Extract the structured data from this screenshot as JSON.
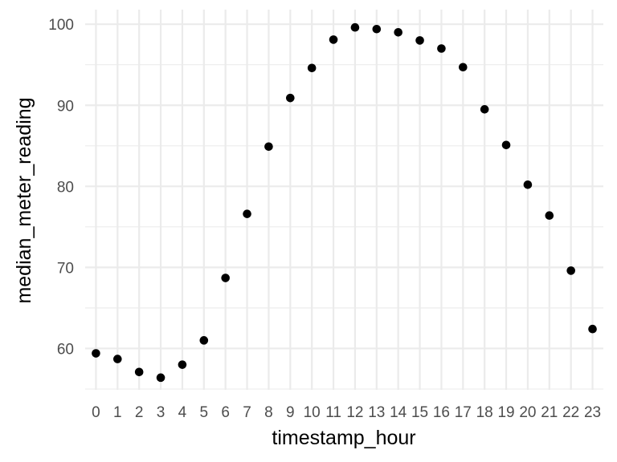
{
  "chart_data": {
    "type": "scatter",
    "title": "",
    "xlabel": "timestamp_hour",
    "ylabel": "median_meter_reading",
    "x": [
      0,
      1,
      2,
      3,
      4,
      5,
      6,
      7,
      8,
      9,
      10,
      11,
      12,
      13,
      14,
      15,
      16,
      17,
      18,
      19,
      20,
      21,
      22,
      23
    ],
    "y": [
      59.4,
      58.7,
      57.1,
      56.4,
      58.0,
      61.0,
      68.7,
      76.6,
      84.9,
      90.9,
      94.6,
      98.1,
      99.6,
      99.4,
      99.0,
      98.0,
      97.0,
      94.7,
      89.5,
      85.1,
      80.2,
      76.4,
      69.6,
      62.4
    ],
    "xlim": [
      -0.5,
      23.5
    ],
    "ylim": [
      54.9,
      101.8
    ],
    "x_ticks": [
      "0",
      "1",
      "2",
      "3",
      "4",
      "5",
      "6",
      "7",
      "8",
      "9",
      "10",
      "11",
      "12",
      "13",
      "14",
      "15",
      "16",
      "17",
      "18",
      "19",
      "20",
      "21",
      "22",
      "23"
    ],
    "y_ticks": [
      60,
      70,
      80,
      90,
      100
    ],
    "y_minor_ticks": [
      55,
      65,
      75,
      85,
      95
    ],
    "grid": true,
    "legend": "none",
    "colors": {
      "point": "#000000",
      "grid": "#ebebeb",
      "tick_text": "#4d4d4d",
      "background": "#ffffff"
    }
  }
}
